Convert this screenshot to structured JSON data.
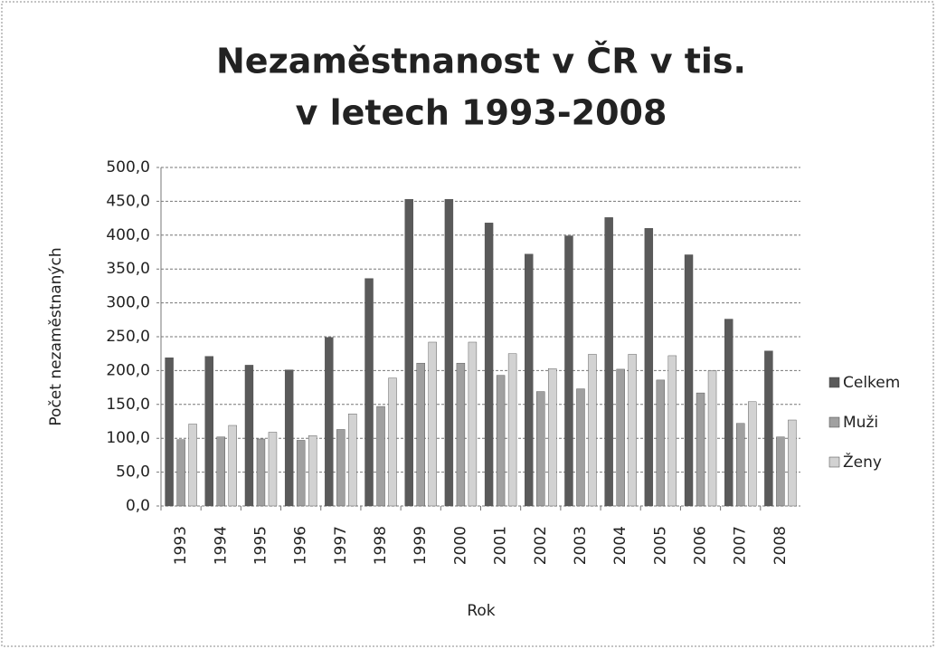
{
  "chart_data": {
    "type": "bar",
    "title": [
      "Nezaměstnanost v ČR v tis.",
      "v letech 1993-2008"
    ],
    "x_label": "Rok",
    "y_label": "Počet nezaměstnaných",
    "categories": [
      "1993",
      "1994",
      "1995",
      "1996",
      "1997",
      "1998",
      "1999",
      "2000",
      "2001",
      "2002",
      "2003",
      "2004",
      "2005",
      "2006",
      "2007",
      "2008"
    ],
    "series": [
      {
        "name": "Celkem",
        "color": "#5a5a5a",
        "values": [
          219,
          221,
          208,
          201,
          249,
          336,
          453,
          453,
          418,
          372,
          399,
          426,
          410,
          371,
          276,
          229
        ]
      },
      {
        "name": "Muži",
        "color": "#a0a0a0",
        "values": [
          98,
          102,
          99,
          97,
          113,
          147,
          211,
          211,
          193,
          169,
          173,
          202,
          186,
          167,
          122,
          102
        ]
      },
      {
        "name": "Ženy",
        "color": "#d2d2d2",
        "values": [
          121,
          119,
          109,
          104,
          136,
          189,
          242,
          242,
          225,
          203,
          224,
          224,
          222,
          200,
          154,
          127
        ]
      }
    ],
    "ylim": [
      0,
      500
    ],
    "yticks": [
      {
        "value": 0,
        "label": "0,0"
      },
      {
        "value": 50,
        "label": "50,0"
      },
      {
        "value": 100,
        "label": "100,0"
      },
      {
        "value": 150,
        "label": "150,0"
      },
      {
        "value": 200,
        "label": "200,0"
      },
      {
        "value": 250,
        "label": "250,0"
      },
      {
        "value": 300,
        "label": "300,0"
      },
      {
        "value": 350,
        "label": "350,0"
      },
      {
        "value": 400,
        "label": "400,0"
      },
      {
        "value": 450,
        "label": "450,0"
      },
      {
        "value": 500,
        "label": "500,0"
      }
    ],
    "grid": true,
    "legend": "right"
  }
}
